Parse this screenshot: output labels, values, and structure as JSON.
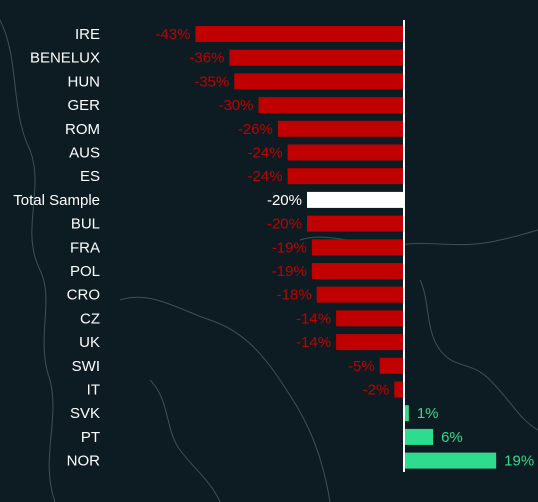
{
  "chart_data": {
    "type": "bar",
    "orientation": "horizontal",
    "categories": [
      "IRE",
      "BENELUX",
      "HUN",
      "GER",
      "ROM",
      "AUS",
      "ES",
      "Total Sample",
      "BUL",
      "FRA",
      "POL",
      "CRO",
      "CZ",
      "UK",
      "SWI",
      "IT",
      "SVK",
      "PT",
      "NOR"
    ],
    "values": [
      -43,
      -36,
      -35,
      -30,
      -26,
      -24,
      -24,
      -20,
      -20,
      -19,
      -19,
      -18,
      -14,
      -14,
      -5,
      -2,
      1,
      6,
      19
    ],
    "value_labels": [
      "-43%",
      "-36%",
      "-35%",
      "-30%",
      "-26%",
      "-24%",
      "-24%",
      "-20%",
      "-20%",
      "-19%",
      "-19%",
      "-18%",
      "-14%",
      "-14%",
      "-5%",
      "-2%",
      "1%",
      "6%",
      "19%"
    ],
    "highlight_category": "Total Sample",
    "grid": false,
    "colors": {
      "negative": "#c00000",
      "positive": "#2edc8f",
      "highlight": "#ffffff",
      "negative_label": "#c00000",
      "positive_label": "#2edc8f",
      "highlight_label": "#ffffff",
      "category_label": "#ffffff",
      "zero_line": "#ffffff",
      "background": "#0d1c22"
    }
  }
}
